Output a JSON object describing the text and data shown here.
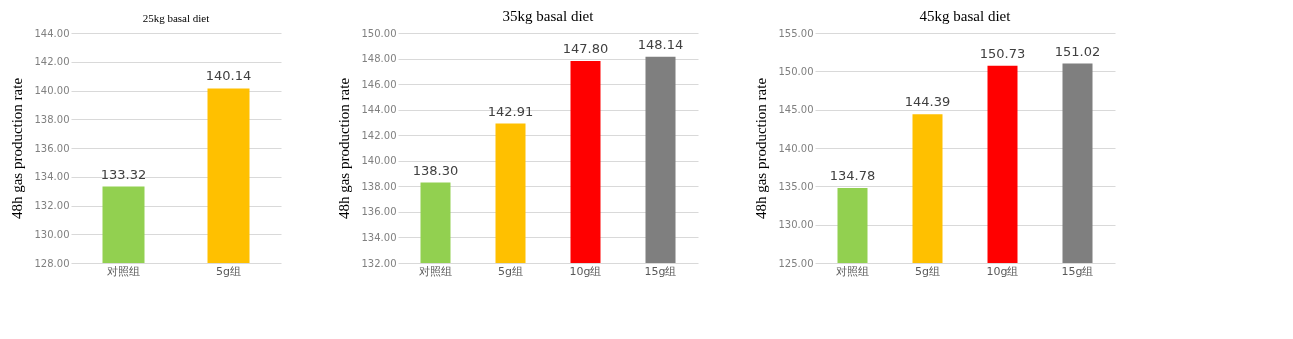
{
  "chart_data": [
    {
      "type": "bar",
      "title": "25kg basal diet",
      "ylabel": "48h gas production rate",
      "categories": [
        "对照组",
        "5g组"
      ],
      "values": [
        133.32,
        140.14
      ],
      "colors": [
        "#92d050",
        "#ffc000"
      ],
      "ylim": [
        128,
        144
      ],
      "yticks": [
        {
          "value": 128,
          "label": "128.00"
        },
        {
          "value": 130,
          "label": "130.00"
        },
        {
          "value": 132,
          "label": "132.00"
        },
        {
          "value": 134,
          "label": "134.00"
        },
        {
          "value": 136,
          "label": "136.00"
        },
        {
          "value": 138,
          "label": "138.00"
        },
        {
          "value": 140,
          "label": "140.00"
        },
        {
          "value": 142,
          "label": "142.00"
        },
        {
          "value": 144,
          "label": "144.00"
        }
      ],
      "grid": "y",
      "data_labels": true
    },
    {
      "type": "bar",
      "title": "35kg basal diet",
      "ylabel": "48h gas production rate",
      "categories": [
        "对照组",
        "5g组",
        "10g组",
        "15g组"
      ],
      "values": [
        138.3,
        142.91,
        147.8,
        148.14
      ],
      "value_labels": [
        "138.30",
        "142.91",
        "147.80",
        "148.14"
      ],
      "colors": [
        "#92d050",
        "#ffc000",
        "#ff0000",
        "#7f7f7f"
      ],
      "ylim": [
        132,
        150
      ],
      "yticks": [
        {
          "value": 132,
          "label": "132.00"
        },
        {
          "value": 134,
          "label": "134.00"
        },
        {
          "value": 136,
          "label": "136.00"
        },
        {
          "value": 138,
          "label": "138.00"
        },
        {
          "value": 140,
          "label": "140.00"
        },
        {
          "value": 142,
          "label": "142.00"
        },
        {
          "value": 144,
          "label": "144.00"
        },
        {
          "value": 146,
          "label": "146.00"
        },
        {
          "value": 148,
          "label": "148.00"
        },
        {
          "value": 150,
          "label": "150.00"
        }
      ],
      "grid": "y"
    },
    {
      "type": "bar",
      "title": "45kg basal diet",
      "ylabel": "48h gas production rate",
      "categories": [
        "对照组",
        "5g组",
        "10g组",
        "15g组"
      ],
      "values": [
        134.78,
        144.39,
        150.73,
        151.02
      ],
      "colors": [
        "#92d050",
        "#ffc000",
        "#ff0000",
        "#7f7f7f"
      ],
      "ylim": [
        125,
        155
      ],
      "yticks": [
        {
          "value": 125,
          "label": "125.00"
        },
        {
          "value": 130,
          "label": "130.00"
        },
        {
          "value": 135,
          "label": "135.00"
        },
        {
          "value": 140,
          "label": "140.00"
        },
        {
          "value": 145,
          "label": "145.00"
        },
        {
          "value": 150,
          "label": "150.00"
        },
        {
          "value": 155,
          "label": "155.00"
        }
      ],
      "grid": "y",
      "data_labels": true
    }
  ]
}
